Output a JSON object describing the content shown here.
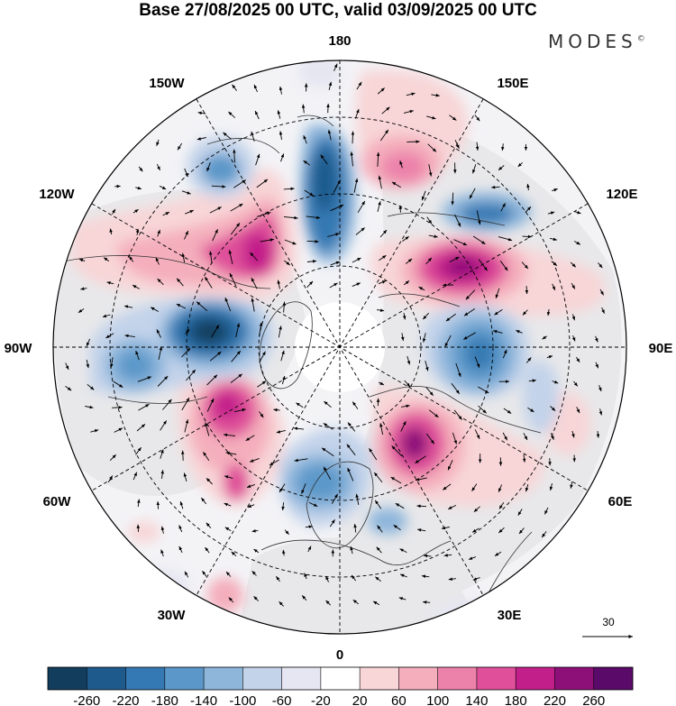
{
  "title": "Base 27/08/2025 00 UTC, valid 03/09/2025 00 UTC",
  "brand": "MODES",
  "brand_mark": "©",
  "longitude_labels": [
    "180",
    "150E",
    "120E",
    "90E",
    "60E",
    "30E",
    "0",
    "30W",
    "60W",
    "90W",
    "120W",
    "150W"
  ],
  "colors": {
    "land": "#eeeeee",
    "border": "#000000",
    "coast": "#333333",
    "arrow": "#000000"
  },
  "colorbar": {
    "ticks": [
      "-260",
      "-220",
      "-180",
      "-140",
      "-100",
      "-60",
      "-20",
      "20",
      "60",
      "100",
      "140",
      "180",
      "220",
      "260"
    ],
    "colors": [
      "#123d5c",
      "#1f5a8c",
      "#3479b3",
      "#5b98c9",
      "#8eb6db",
      "#c3d3ea",
      "#e6e6f2",
      "#ffffff",
      "#f8d5d7",
      "#f4aebc",
      "#ec82aa",
      "#df4f9a",
      "#c21f8a",
      "#8d1079",
      "#5a0a68"
    ]
  },
  "wind_reference": {
    "label": "30"
  },
  "anomaly_centers": [
    {
      "name": "blue-hudson-bay",
      "lon_deg": -100,
      "lat_deg": 63,
      "value": -260
    },
    {
      "name": "blue-north-canada",
      "lon_deg": -110,
      "lat_deg": 61,
      "value": -140
    },
    {
      "name": "blue-alaska",
      "lon_deg": -140,
      "lat_deg": 64,
      "value": -120
    },
    {
      "name": "blue-bering-strait",
      "lon_deg": 168,
      "lat_deg": 71,
      "value": -200
    },
    {
      "name": "blue-siberia-120e",
      "lon_deg": 120,
      "lat_deg": 62,
      "value": -120
    },
    {
      "name": "blue-siberia-90e",
      "lon_deg": 87,
      "lat_deg": 63,
      "value": -200
    },
    {
      "name": "blue-scandinavia",
      "lon_deg": 3,
      "lat_deg": 66,
      "value": -160
    },
    {
      "name": "pink-western-canada",
      "lon_deg": -125,
      "lat_deg": 60,
      "value": 220
    },
    {
      "name": "pink-greenland",
      "lon_deg": -55,
      "lat_deg": 68,
      "value": 180
    },
    {
      "name": "pink-north-pacific",
      "lon_deg": 157,
      "lat_deg": 58,
      "value": 140
    },
    {
      "name": "pink-east-siberia",
      "lon_deg": 111,
      "lat_deg": 63,
      "value": 260
    },
    {
      "name": "pink-west-siberia",
      "lon_deg": 46,
      "lat_deg": 62,
      "value": 220
    }
  ]
}
